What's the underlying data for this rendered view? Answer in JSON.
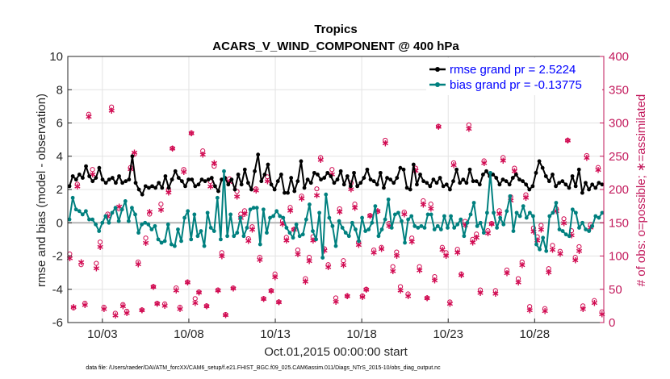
{
  "chart_data": {
    "type": "line",
    "title": "Tropics",
    "subtitle": "ACARS_V_WIND_COMPONENT @ 400 hPa",
    "xlabel": "Oct.01,2015 00:00:00 start",
    "ylabel": "rmse and bias (model - observation)",
    "y2label": "# of obs: o=possible; ∗=assimilated",
    "footnote": "data file: /Users/raeder/DAI/ATM_forcXX/CAM6_setup/f.e21.FHIST_BGC.f09_025.CAM6assim.011/Diags_NTrS_2015-10/obs_diag_output.nc",
    "xlim": [
      1,
      32
    ],
    "ylim": [
      -6,
      10
    ],
    "y2lim": [
      0,
      400
    ],
    "x_ticks": [
      3,
      8,
      13,
      18,
      23,
      28
    ],
    "x_tick_labels": [
      "10/03",
      "10/08",
      "10/13",
      "10/18",
      "10/23",
      "10/28"
    ],
    "y_ticks": [
      "-6",
      "-4",
      "-2",
      "0",
      "2",
      "4",
      "6",
      "8",
      "10"
    ],
    "y2_ticks": [
      "0",
      "50",
      "100",
      "150",
      "200",
      "250",
      "300",
      "350",
      "400"
    ],
    "legend_position": "top-right",
    "colors": {
      "rmse": "#000000",
      "bias": "#00807f",
      "obs": "#d10b52",
      "zero": "#b5b5b5",
      "right_axis": "#c2185b",
      "legend_text": "#0000ff"
    },
    "series": [
      {
        "name": "rmse grand pr = 2.5224",
        "color": "#000000",
        "values": [
          2.2,
          2.8,
          2.6,
          2.9,
          2.7,
          3.4,
          2.8,
          2.5,
          2.7,
          3.3,
          2.6,
          2.4,
          2.6,
          2.7,
          2.4,
          2.8,
          2.4,
          2.5,
          2.6,
          4.0,
          2.4,
          2.0,
          1.7,
          2.2,
          2.1,
          2.2,
          2.1,
          2.4,
          2.1,
          2.8,
          2.1,
          2.6,
          3.1,
          2.7,
          2.5,
          2.2,
          2.6,
          2.6,
          2.2,
          2.3,
          2.6,
          2.5,
          2.6,
          2.7,
          2.2,
          1.9,
          2.6,
          2.7,
          2.3,
          2.6,
          2.0,
          2.9,
          2.3,
          3.2,
          2.4,
          2.0,
          3.1,
          4.1,
          2.5,
          2.9,
          3.5,
          2.3,
          2.0,
          2.5,
          2.9,
          1.8,
          1.8,
          2.7,
          1.9,
          2.5,
          3.7,
          2.1,
          2.6,
          2.4,
          3.0,
          2.9,
          2.6,
          2.7,
          3.0,
          2.8,
          2.4,
          2.6,
          3.1,
          2.3,
          2.8,
          2.2,
          3.0,
          2.2,
          2.4,
          2.7,
          3.2,
          2.6,
          2.5,
          2.3,
          3.0,
          2.1,
          2.7,
          2.6,
          2.4,
          2.7,
          3.3,
          3.2,
          2.1,
          2.0,
          3.5,
          2.3,
          2.9,
          2.5,
          2.4,
          2.2,
          2.6,
          2.4,
          2.7,
          2.2,
          2.3,
          2.0,
          2.5,
          3.2,
          2.4,
          2.6,
          2.4,
          3.2,
          2.5,
          2.5,
          2.3,
          2.9,
          3.1,
          2.8,
          2.9,
          2.7,
          2.3,
          2.6,
          2.5,
          2.3,
          2.7,
          2.9,
          2.6,
          2.5,
          2.3,
          2.0,
          2.2,
          3.0,
          3.7,
          3.3,
          2.8,
          2.5,
          2.9,
          2.2,
          2.4,
          2.5,
          2.3,
          2.1,
          2.8,
          2.2,
          3.2,
          1.8,
          2.4,
          2.0,
          2.3,
          2.1,
          2.4,
          2.3
        ]
      },
      {
        "name": "bias grand pr = -0.13775",
        "color": "#00807f",
        "values": [
          0.2,
          1.5,
          0.8,
          0.7,
          0.5,
          0.7,
          0.2,
          0.2,
          -0.1,
          -0.5,
          0.0,
          0.4,
          0.0,
          0.6,
          0.9,
          0.1,
          0.8,
          1.3,
          0.1,
          0.9,
          0.5,
          -0.6,
          -0.1,
          0.0,
          -0.1,
          -0.4,
          -0.2,
          -1.0,
          -1.2,
          -1.1,
          -0.1,
          -1.3,
          -1.4,
          -0.4,
          -1.1,
          0.3,
          0.7,
          -1.0,
          0.5,
          -0.8,
          -0.5,
          -1.4,
          0.6,
          -0.3,
          -0.5,
          1.5,
          -1.0,
          3.1,
          -0.8,
          0.5,
          -0.8,
          -0.6,
          0.3,
          -0.8,
          -0.3,
          0.8,
          0.9,
          0.9,
          -1.3,
          0.8,
          -0.6,
          0.3,
          0.4,
          0.7,
          0.4,
          0.3,
          -0.3,
          -0.6,
          -0.9,
          -0.1,
          -0.8,
          -0.7,
          0.2,
          1.1,
          -0.5,
          -1.0,
          0.6,
          -2.1,
          1.7,
          0.3,
          -0.2,
          -1.4,
          0.1,
          -0.3,
          -0.6,
          -0.8,
          0.0,
          -0.4,
          -1.1,
          0.3,
          -0.5,
          -0.4,
          0.0,
          1.0,
          -0.8,
          -0.4,
          0.2,
          1.4,
          -0.3,
          0.5,
          0.6,
          0.1,
          -1.2,
          0.2,
          0.4,
          -0.2,
          -0.3,
          -0.2,
          -0.3,
          0.5,
          0.5,
          -0.4,
          -0.2,
          -0.4,
          0.4,
          -0.3,
          0.4,
          -0.3,
          -0.1,
          0.2,
          -0.8,
          0.0,
          0.5,
          1.2,
          -0.2,
          0.0,
          -0.6,
          0.6,
          3.0,
          0.6,
          -0.3,
          0.3,
          -0.1,
          0.7,
          1.6,
          -0.5,
          0.6,
          0.4,
          1.0,
          0.3,
          0.6,
          0.4,
          -1.3,
          -1.6,
          -0.9,
          -1.7,
          0.4,
          0.6,
          1.2,
          -0.4,
          -0.5,
          -0.7,
          -0.8,
          0.8,
          0.6,
          -0.3,
          0.0,
          -0.4,
          -0.5,
          -0.2,
          0.4,
          0.3,
          0.6
        ]
      }
    ],
    "obs_counts": {
      "possible": [
        103,
        22,
        208,
        87,
        29,
        313,
        230,
        89,
        121,
        23,
        163,
        324,
        14,
        171,
        27,
        17,
        233,
        253,
        91,
        19,
        127,
        163,
        54,
        29,
        178,
        28,
        200,
        262,
        52,
        23,
        230,
        61,
        285,
        36,
        46,
        258,
        25,
        212,
        235,
        49,
        105,
        12,
        216,
        52,
        197,
        163,
        168,
        126,
        144,
        201,
        98,
        36,
        219,
        48,
        73,
        31,
        153,
        128,
        173,
        140,
        109,
        190,
        66,
        98,
        129,
        201,
        248,
        111,
        87,
        230,
        37,
        171,
        93,
        40,
        210,
        178,
        121,
        40,
        50,
        161,
        109,
        167,
        113,
        274,
        149,
        84,
        106,
        54,
        166,
        43,
        127,
        232,
        84,
        183,
        37,
        178,
        69,
        295,
        113,
        105,
        31,
        240,
        110,
        73,
        152,
        297,
        125,
        133,
        49,
        243,
        138,
        149,
        48,
        168,
        248,
        79,
        189,
        232,
        66,
        91,
        192,
        24,
        142,
        129,
        146,
        21,
        81,
        116,
        171,
        107,
        156,
        274,
        138,
        98,
        114,
        25,
        251,
        147,
        33,
        233,
        16
      ],
      "assimilated": [
        97,
        24,
        205,
        91,
        27,
        310,
        223,
        82,
        114,
        21,
        160,
        319,
        11,
        175,
        25,
        15,
        231,
        256,
        88,
        19,
        120,
        167,
        54,
        29,
        170,
        26,
        196,
        262,
        49,
        21,
        227,
        61,
        285,
        30,
        46,
        253,
        25,
        205,
        240,
        49,
        100,
        12,
        212,
        52,
        190,
        158,
        164,
        123,
        140,
        199,
        95,
        36,
        213,
        48,
        69,
        31,
        149,
        124,
        169,
        140,
        103,
        187,
        62,
        93,
        124,
        192,
        245,
        109,
        84,
        223,
        32,
        167,
        87,
        40,
        201,
        173,
        117,
        39,
        50,
        161,
        106,
        168,
        111,
        270,
        146,
        78,
        101,
        49,
        163,
        40,
        122,
        229,
        79,
        178,
        37,
        172,
        64,
        295,
        110,
        101,
        29,
        237,
        106,
        72,
        147,
        292,
        121,
        128,
        45,
        240,
        135,
        149,
        44,
        164,
        244,
        75,
        184,
        228,
        61,
        87,
        188,
        19,
        137,
        124,
        140,
        18,
        76,
        110,
        168,
        104,
        150,
        274,
        132,
        94,
        108,
        21,
        248,
        143,
        30,
        230,
        13
      ]
    }
  }
}
